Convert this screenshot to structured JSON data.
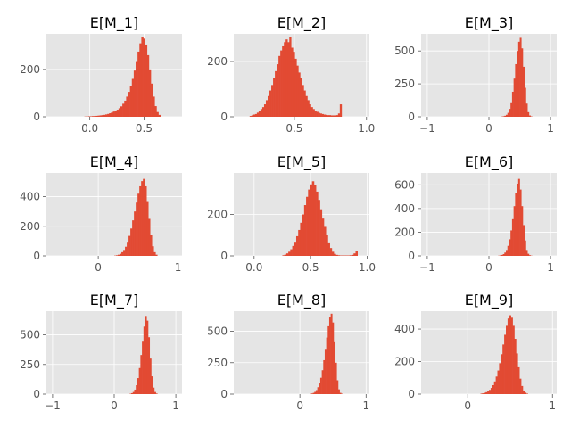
{
  "style": {
    "axes_bg": "#e5e5e5",
    "grid": "#ffffff",
    "bar": "#e24a33",
    "tick_text": "#555555",
    "title_text": "#000000"
  },
  "chart_data": [
    {
      "type": "histogram",
      "title": "E[M_1]",
      "grid": true,
      "xlim": [
        -0.4,
        0.85
      ],
      "ylim": [
        0,
        350
      ],
      "xticks": [
        0.0,
        0.5
      ],
      "xtick_labels": [
        "0.0",
        "0.5"
      ],
      "yticks": [
        0,
        200
      ],
      "ytick_labels": [
        "0",
        "200"
      ],
      "bin_start": -0.05,
      "bin_width": 0.0175,
      "counts": [
        1,
        1,
        2,
        2,
        3,
        3,
        4,
        5,
        6,
        7,
        8,
        10,
        12,
        15,
        18,
        22,
        26,
        30,
        36,
        44,
        55,
        68,
        85,
        105,
        130,
        160,
        195,
        235,
        275,
        310,
        335,
        330,
        305,
        260,
        200,
        140,
        85,
        45,
        20,
        8
      ]
    },
    {
      "type": "histogram",
      "title": "E[M_2]",
      "grid": true,
      "xlim": [
        0.08,
        1.02
      ],
      "ylim": [
        0,
        300
      ],
      "xticks": [
        0.5,
        1.0
      ],
      "xtick_labels": [
        "0.5",
        "1.0"
      ],
      "yticks": [
        0,
        200
      ],
      "ytick_labels": [
        "0",
        "200"
      ],
      "bin_start": 0.19,
      "bin_width": 0.0125,
      "counts": [
        3,
        5,
        8,
        10,
        15,
        20,
        28,
        35,
        45,
        60,
        75,
        95,
        115,
        140,
        165,
        190,
        220,
        240,
        255,
        270,
        280,
        270,
        290,
        250,
        235,
        210,
        185,
        160,
        140,
        115,
        95,
        75,
        60,
        45,
        35,
        28,
        22,
        18,
        14,
        12,
        10,
        8,
        7,
        6,
        6,
        5,
        5,
        5,
        6,
        12,
        45
      ]
    },
    {
      "type": "histogram",
      "title": "E[M_3]",
      "grid": true,
      "xlim": [
        -1.1,
        1.1
      ],
      "ylim": [
        0,
        630
      ],
      "xticks": [
        -1,
        0,
        1
      ],
      "xtick_labels": [
        "−1",
        "0",
        "1"
      ],
      "yticks": [
        0,
        250,
        500
      ],
      "ytick_labels": [
        "0",
        "250",
        "500"
      ],
      "bin_start": 0.2,
      "bin_width": 0.025,
      "counts": [
        2,
        4,
        8,
        15,
        30,
        60,
        110,
        190,
        290,
        400,
        500,
        570,
        600,
        520,
        380,
        220,
        100,
        35,
        10,
        3
      ]
    },
    {
      "type": "histogram",
      "title": "E[M_4]",
      "grid": true,
      "xlim": [
        -0.65,
        1.05
      ],
      "ylim": [
        0,
        560
      ],
      "xticks": [
        0,
        1
      ],
      "xtick_labels": [
        "0",
        "1"
      ],
      "yticks": [
        0,
        200,
        400
      ],
      "ytick_labels": [
        "0",
        "200",
        "400"
      ],
      "bin_start": 0.2,
      "bin_width": 0.0225,
      "counts": [
        2,
        4,
        8,
        14,
        25,
        40,
        62,
        95,
        135,
        185,
        240,
        300,
        360,
        420,
        470,
        505,
        520,
        470,
        370,
        250,
        140,
        65,
        25,
        8
      ]
    },
    {
      "type": "histogram",
      "title": "E[M_5]",
      "grid": true,
      "xlim": [
        -0.18,
        1.02
      ],
      "ylim": [
        0,
        400
      ],
      "xticks": [
        0.0,
        0.5,
        1.0
      ],
      "xtick_labels": [
        "0.0",
        "0.5",
        "1.0"
      ],
      "yticks": [
        0,
        200
      ],
      "ytick_labels": [
        "0",
        "200"
      ],
      "bin_start": 0.25,
      "bin_width": 0.0175,
      "counts": [
        3,
        6,
        12,
        20,
        32,
        48,
        68,
        95,
        125,
        160,
        200,
        245,
        285,
        320,
        345,
        360,
        340,
        310,
        270,
        225,
        180,
        140,
        100,
        65,
        38,
        20,
        10,
        5,
        3,
        2,
        2,
        2,
        2,
        2,
        3,
        5,
        12,
        25
      ]
    },
    {
      "type": "histogram",
      "title": "E[M_6]",
      "grid": true,
      "xlim": [
        -1.1,
        1.1
      ],
      "ylim": [
        0,
        700
      ],
      "xticks": [
        -1,
        0,
        1
      ],
      "xtick_labels": [
        "−1",
        "0",
        "1"
      ],
      "yticks": [
        0,
        200,
        400,
        600
      ],
      "ytick_labels": [
        "0",
        "200",
        "400",
        "600"
      ],
      "bin_start": 0.15,
      "bin_width": 0.025,
      "counts": [
        2,
        4,
        8,
        15,
        28,
        50,
        85,
        140,
        215,
        310,
        420,
        530,
        610,
        650,
        560,
        420,
        260,
        130,
        50,
        18,
        6,
        2
      ]
    },
    {
      "type": "histogram",
      "title": "E[M_7]",
      "grid": true,
      "xlim": [
        -1.1,
        1.1
      ],
      "ylim": [
        0,
        700
      ],
      "xticks": [
        -1,
        0,
        1
      ],
      "xtick_labels": [
        "−1",
        "0",
        "1"
      ],
      "yticks": [
        0,
        250,
        500
      ],
      "ytick_labels": [
        "0",
        "250",
        "500"
      ],
      "bin_start": 0.25,
      "bin_width": 0.025,
      "counts": [
        3,
        8,
        18,
        38,
        75,
        135,
        220,
        330,
        450,
        570,
        660,
        620,
        480,
        300,
        150,
        55,
        18,
        5
      ]
    },
    {
      "type": "histogram",
      "title": "E[M_8]",
      "grid": true,
      "xlim": [
        -1.0,
        1.05
      ],
      "ylim": [
        0,
        660
      ],
      "xticks": [
        0,
        1
      ],
      "xtick_labels": [
        "0",
        "1"
      ],
      "yticks": [
        0,
        250,
        500
      ],
      "ytick_labels": [
        "0",
        "250",
        "500"
      ],
      "bin_start": 0.15,
      "bin_width": 0.0225,
      "counts": [
        2,
        5,
        10,
        18,
        32,
        55,
        85,
        130,
        190,
        270,
        360,
        450,
        540,
        610,
        640,
        570,
        420,
        250,
        110,
        38,
        10,
        3
      ]
    },
    {
      "type": "histogram",
      "title": "E[M_9]",
      "grid": true,
      "xlim": [
        -0.55,
        1.05
      ],
      "ylim": [
        0,
        510
      ],
      "xticks": [
        0,
        1
      ],
      "xtick_labels": [
        "0",
        "1"
      ],
      "yticks": [
        0,
        200,
        400
      ],
      "ytick_labels": [
        "0",
        "200",
        "400"
      ],
      "bin_start": 0.15,
      "bin_width": 0.02,
      "counts": [
        3,
        5,
        8,
        12,
        18,
        26,
        38,
        55,
        78,
        108,
        145,
        190,
        245,
        305,
        365,
        420,
        465,
        485,
        470,
        420,
        340,
        250,
        165,
        95,
        50,
        22,
        9,
        3
      ]
    }
  ]
}
